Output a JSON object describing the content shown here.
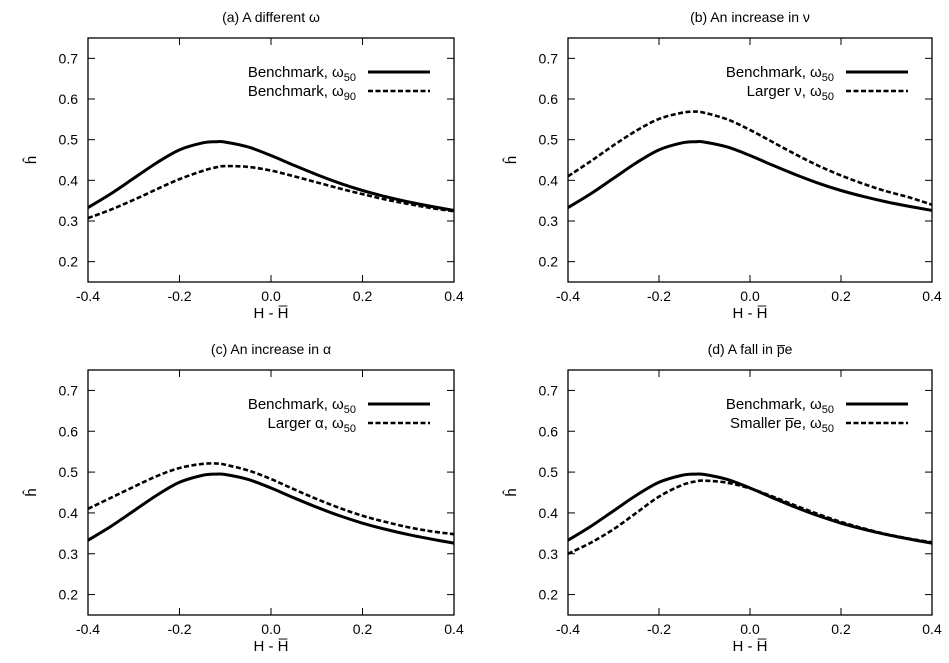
{
  "chart_data": [
    {
      "type": "line",
      "title": "(a) A different ω",
      "xlabel": "H - H̅",
      "ylabel": "ĥ",
      "xlim": [
        -0.4,
        0.4
      ],
      "ylim": [
        0.15,
        0.75
      ],
      "xticks": [
        "-0.4",
        "-0.2",
        "0.0",
        "0.2",
        "0.4"
      ],
      "yticks": [
        "0.2",
        "0.3",
        "0.4",
        "0.5",
        "0.6",
        "0.7"
      ],
      "x": [
        -0.4,
        -0.35,
        -0.3,
        -0.25,
        -0.2,
        -0.15,
        -0.12,
        -0.1,
        -0.05,
        0.0,
        0.05,
        0.1,
        0.15,
        0.2,
        0.25,
        0.3,
        0.35,
        0.4
      ],
      "series": [
        {
          "name": "Benchmark, ω50",
          "style": "solid",
          "values": [
            0.333,
            0.367,
            0.405,
            0.443,
            0.475,
            0.492,
            0.495,
            0.494,
            0.482,
            0.461,
            0.437,
            0.414,
            0.393,
            0.375,
            0.36,
            0.347,
            0.336,
            0.326
          ]
        },
        {
          "name": "Benchmark, ω90",
          "style": "dashed",
          "values": [
            0.307,
            0.328,
            0.352,
            0.378,
            0.403,
            0.423,
            0.432,
            0.435,
            0.433,
            0.424,
            0.41,
            0.395,
            0.38,
            0.366,
            0.353,
            0.342,
            0.332,
            0.324
          ]
        }
      ],
      "legend": [
        {
          "text": "Benchmark, ω",
          "sub": "50",
          "style": "solid"
        },
        {
          "text": "Benchmark, ω",
          "sub": "90",
          "style": "dashed"
        }
      ],
      "legend_position": "top-right"
    },
    {
      "type": "line",
      "title": "(b) An increase in ν",
      "xlabel": "H - H̅",
      "ylabel": "ĥ",
      "xlim": [
        -0.4,
        0.4
      ],
      "ylim": [
        0.15,
        0.75
      ],
      "xticks": [
        "-0.4",
        "-0.2",
        "0.0",
        "0.2",
        "0.4"
      ],
      "yticks": [
        "0.2",
        "0.3",
        "0.4",
        "0.5",
        "0.6",
        "0.7"
      ],
      "x": [
        -0.4,
        -0.35,
        -0.3,
        -0.25,
        -0.2,
        -0.15,
        -0.12,
        -0.1,
        -0.05,
        0.0,
        0.05,
        0.1,
        0.15,
        0.2,
        0.25,
        0.3,
        0.35,
        0.4
      ],
      "series": [
        {
          "name": "Benchmark, ω50",
          "style": "solid",
          "values": [
            0.333,
            0.367,
            0.405,
            0.443,
            0.475,
            0.492,
            0.495,
            0.494,
            0.482,
            0.461,
            0.437,
            0.414,
            0.393,
            0.375,
            0.36,
            0.347,
            0.336,
            0.326
          ]
        },
        {
          "name": "Larger ν, ω50",
          "style": "dashed",
          "values": [
            0.41,
            0.447,
            0.486,
            0.522,
            0.551,
            0.566,
            0.569,
            0.566,
            0.55,
            0.524,
            0.494,
            0.464,
            0.436,
            0.412,
            0.391,
            0.373,
            0.358,
            0.34
          ]
        }
      ],
      "legend": [
        {
          "text": "Benchmark, ω",
          "sub": "50",
          "style": "solid"
        },
        {
          "text": "Larger ν, ω",
          "sub": "50",
          "style": "dashed"
        }
      ],
      "legend_position": "top-right"
    },
    {
      "type": "line",
      "title": "(c) An increase in α",
      "xlabel": "H - H̅",
      "ylabel": "ĥ",
      "xlim": [
        -0.4,
        0.4
      ],
      "ylim": [
        0.15,
        0.75
      ],
      "xticks": [
        "-0.4",
        "-0.2",
        "0.0",
        "0.2",
        "0.4"
      ],
      "yticks": [
        "0.2",
        "0.3",
        "0.4",
        "0.5",
        "0.6",
        "0.7"
      ],
      "x": [
        -0.4,
        -0.35,
        -0.3,
        -0.25,
        -0.2,
        -0.15,
        -0.12,
        -0.1,
        -0.05,
        0.0,
        0.05,
        0.1,
        0.15,
        0.2,
        0.25,
        0.3,
        0.35,
        0.4
      ],
      "series": [
        {
          "name": "Benchmark, ω50",
          "style": "solid",
          "values": [
            0.333,
            0.367,
            0.405,
            0.443,
            0.475,
            0.492,
            0.495,
            0.494,
            0.482,
            0.461,
            0.437,
            0.414,
            0.393,
            0.375,
            0.36,
            0.347,
            0.336,
            0.326
          ]
        },
        {
          "name": "Larger α, ω50",
          "style": "dashed",
          "values": [
            0.41,
            0.437,
            0.464,
            0.49,
            0.51,
            0.52,
            0.521,
            0.518,
            0.504,
            0.483,
            0.458,
            0.434,
            0.412,
            0.393,
            0.378,
            0.365,
            0.355,
            0.348
          ]
        }
      ],
      "legend": [
        {
          "text": "Benchmark, ω",
          "sub": "50",
          "style": "solid"
        },
        {
          "text": "Larger α, ω",
          "sub": "50",
          "style": "dashed"
        }
      ],
      "legend_position": "top-right"
    },
    {
      "type": "line",
      "title": "(d) A fall in p̅e",
      "xlabel": "H - H̅",
      "ylabel": "ĥ",
      "xlim": [
        -0.4,
        0.4
      ],
      "ylim": [
        0.15,
        0.75
      ],
      "xticks": [
        "-0.4",
        "-0.2",
        "0.0",
        "0.2",
        "0.4"
      ],
      "yticks": [
        "0.2",
        "0.3",
        "0.4",
        "0.5",
        "0.6",
        "0.7"
      ],
      "x": [
        -0.4,
        -0.35,
        -0.3,
        -0.25,
        -0.2,
        -0.15,
        -0.12,
        -0.1,
        -0.05,
        0.0,
        0.05,
        0.1,
        0.15,
        0.2,
        0.25,
        0.3,
        0.35,
        0.4
      ],
      "series": [
        {
          "name": "Benchmark, ω50",
          "style": "solid",
          "values": [
            0.333,
            0.367,
            0.405,
            0.443,
            0.475,
            0.492,
            0.495,
            0.494,
            0.482,
            0.461,
            0.437,
            0.414,
            0.393,
            0.375,
            0.36,
            0.347,
            0.336,
            0.326
          ]
        },
        {
          "name": "Smaller p̅e, ω50",
          "style": "dashed",
          "values": [
            0.3,
            0.327,
            0.36,
            0.4,
            0.44,
            0.468,
            0.477,
            0.479,
            0.474,
            0.46,
            0.44,
            0.418,
            0.397,
            0.378,
            0.362,
            0.348,
            0.337,
            0.328
          ]
        }
      ],
      "legend": [
        {
          "text": "Benchmark, ω",
          "sub": "50",
          "style": "solid"
        },
        {
          "text": "Smaller p̅e, ω",
          "sub": "50",
          "style": "dashed"
        }
      ],
      "legend_position": "top-right"
    }
  ]
}
